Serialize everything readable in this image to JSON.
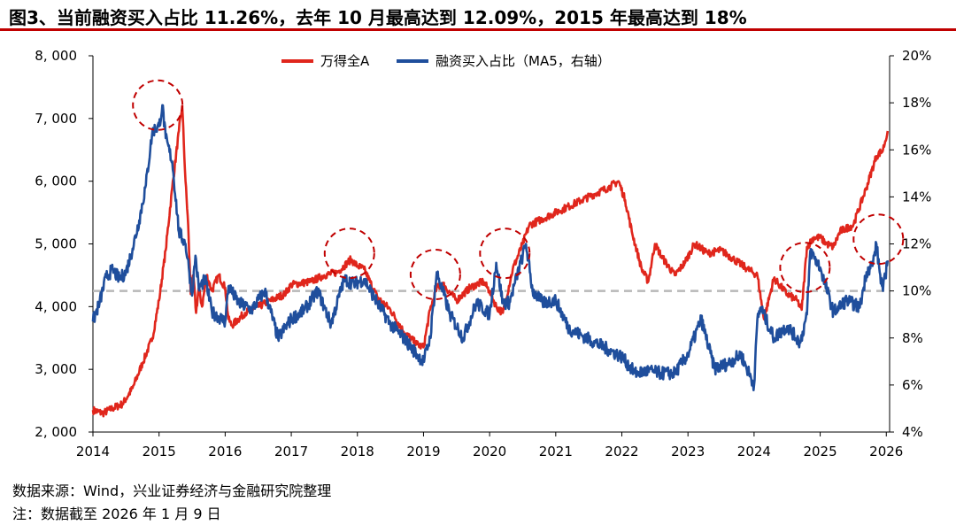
{
  "header": {
    "title": "图3、当前融资买入占比 11.26%，去年 10 月最高达到 12.09%，2015 年最高达到 18%"
  },
  "footer": {
    "source": "数据来源：Wind，兴业证券经济与金融研究院整理",
    "note": "注：数据截至 2026 年 1 月 9 日"
  },
  "colors": {
    "series_a": "#e0261c",
    "series_b": "#1f4e9c",
    "reference_line": "#b8b8b8",
    "circles": "#c00000",
    "title_rule": "#c00000"
  },
  "chart_data": {
    "type": "line",
    "title": "当前融资买入占比 11.26%，去年 10 月最高达到 12.09%，2015 年最高达到 18%",
    "x_tick_labels": [
      "2014",
      "2015",
      "2016",
      "2017",
      "2018",
      "2019",
      "2020",
      "2021",
      "2022",
      "2023",
      "2024",
      "2025",
      "2026"
    ],
    "x_range": [
      2014.0,
      2026.05
    ],
    "y_left": {
      "label": "万得全A",
      "range": [
        2000,
        8000
      ],
      "ticks": [
        "2, 000",
        "3, 000",
        "4, 000",
        "5, 000",
        "6, 000",
        "7, 000",
        "8, 000"
      ]
    },
    "y_right": {
      "label": "融资买入占比（MA5）",
      "unit": "%",
      "range": [
        4,
        20
      ],
      "ticks": [
        "4%",
        "6%",
        "8%",
        "10%",
        "12%",
        "14%",
        "16%",
        "18%",
        "20%"
      ]
    },
    "legend": {
      "position": "top-center"
    },
    "reference_line": {
      "axis": "right",
      "value": 10.0,
      "style": "dashed"
    },
    "series": [
      {
        "name": "万得全A",
        "axis": "left",
        "x": [
          2014.0,
          2014.15,
          2014.3,
          2014.45,
          2014.6,
          2014.75,
          2014.9,
          2015.0,
          2015.1,
          2015.2,
          2015.3,
          2015.35,
          2015.4,
          2015.44,
          2015.48,
          2015.52,
          2015.56,
          2015.6,
          2015.65,
          2015.72,
          2015.8,
          2015.9,
          2016.0,
          2016.05,
          2016.1,
          2016.3,
          2016.6,
          2016.9,
          2017.0,
          2017.3,
          2017.5,
          2017.7,
          2017.9,
          2018.0,
          2018.1,
          2018.3,
          2018.5,
          2018.7,
          2018.9,
          2019.0,
          2019.1,
          2019.2,
          2019.3,
          2019.5,
          2019.7,
          2019.9,
          2020.0,
          2020.1,
          2020.2,
          2020.35,
          2020.5,
          2020.6,
          2020.8,
          2021.0,
          2021.2,
          2021.4,
          2021.6,
          2021.8,
          2021.95,
          2022.05,
          2022.15,
          2022.3,
          2022.4,
          2022.5,
          2022.6,
          2022.8,
          2022.95,
          2023.1,
          2023.3,
          2023.5,
          2023.7,
          2023.9,
          2024.05,
          2024.15,
          2024.3,
          2024.5,
          2024.65,
          2024.72,
          2024.8,
          2024.9,
          2025.0,
          2025.1,
          2025.2,
          2025.3,
          2025.5,
          2025.7,
          2025.85,
          2025.95,
          2026.02
        ],
        "values": [
          2350,
          2300,
          2380,
          2450,
          2700,
          3100,
          3500,
          4100,
          4900,
          5900,
          6800,
          7200,
          6000,
          5300,
          4200,
          4500,
          3900,
          4300,
          4000,
          4500,
          4250,
          4500,
          4300,
          3800,
          3700,
          3900,
          4050,
          4200,
          4350,
          4400,
          4500,
          4550,
          4750,
          4650,
          4600,
          4150,
          3950,
          3600,
          3400,
          3350,
          3950,
          4300,
          4350,
          4100,
          4300,
          4400,
          4250,
          4000,
          3900,
          4600,
          5000,
          5300,
          5400,
          5500,
          5600,
          5700,
          5800,
          5900,
          6000,
          5700,
          5200,
          4600,
          4400,
          5000,
          4800,
          4500,
          4700,
          5000,
          4850,
          4900,
          4750,
          4600,
          4500,
          3800,
          4450,
          4200,
          4100,
          3950,
          4950,
          5100,
          5100,
          5000,
          4950,
          5200,
          5300,
          5900,
          6400,
          6500,
          6800
        ]
      },
      {
        "name": "融资买入占比（MA5，右轴）",
        "axis": "right",
        "x": [
          2014.0,
          2014.1,
          2014.2,
          2014.3,
          2014.4,
          2014.5,
          2014.6,
          2014.7,
          2014.8,
          2014.9,
          2015.0,
          2015.05,
          2015.1,
          2015.2,
          2015.3,
          2015.4,
          2015.45,
          2015.5,
          2015.55,
          2015.6,
          2015.7,
          2015.8,
          2016.0,
          2016.05,
          2016.2,
          2016.4,
          2016.6,
          2016.8,
          2017.0,
          2017.2,
          2017.4,
          2017.6,
          2017.8,
          2017.95,
          2018.1,
          2018.3,
          2018.5,
          2018.7,
          2018.9,
          2019.0,
          2019.1,
          2019.2,
          2019.4,
          2019.6,
          2019.8,
          2020.0,
          2020.1,
          2020.2,
          2020.3,
          2020.5,
          2020.55,
          2020.65,
          2020.8,
          2021.0,
          2021.2,
          2021.4,
          2021.6,
          2021.8,
          2022.0,
          2022.2,
          2022.4,
          2022.6,
          2022.8,
          2023.0,
          2023.2,
          2023.4,
          2023.6,
          2023.8,
          2024.0,
          2024.05,
          2024.1,
          2024.3,
          2024.5,
          2024.7,
          2024.8,
          2024.85,
          2025.0,
          2025.2,
          2025.4,
          2025.6,
          2025.7,
          2025.8,
          2025.85,
          2025.9,
          2025.95,
          2026.02
        ],
        "values": [
          8.7,
          9.5,
          10.6,
          10.9,
          10.5,
          10.8,
          11.8,
          13.0,
          14.5,
          16.8,
          17.0,
          17.9,
          16.5,
          15.5,
          12.5,
          12.0,
          11.0,
          9.8,
          11.5,
          10.1,
          10.5,
          9.1,
          8.7,
          10.2,
          9.5,
          9.2,
          10.0,
          8.0,
          8.8,
          9.2,
          10.0,
          8.6,
          10.5,
          10.3,
          10.5,
          9.5,
          8.6,
          8.0,
          7.3,
          7.0,
          8.0,
          10.8,
          9.0,
          8.0,
          9.5,
          9.0,
          11.2,
          9.5,
          9.5,
          11.5,
          12.0,
          10.0,
          9.5,
          9.6,
          8.4,
          8.1,
          7.8,
          7.5,
          7.2,
          6.5,
          6.6,
          6.5,
          6.5,
          7.3,
          8.8,
          6.7,
          6.9,
          7.3,
          6.0,
          8.8,
          9.3,
          8.0,
          8.5,
          7.8,
          9.0,
          11.7,
          11.0,
          9.1,
          9.6,
          9.3,
          10.8,
          11.2,
          12.0,
          10.8,
          10.0,
          11.3
        ]
      }
    ],
    "highlights": [
      {
        "x": 2014.98,
        "y": 17.9,
        "axis": "right"
      },
      {
        "x": 2017.88,
        "y": 11.6,
        "axis": "right"
      },
      {
        "x": 2019.18,
        "y": 10.7,
        "axis": "right"
      },
      {
        "x": 2020.23,
        "y": 11.6,
        "axis": "right"
      },
      {
        "x": 2024.77,
        "y": 11.0,
        "axis": "right"
      },
      {
        "x": 2025.88,
        "y": 12.2,
        "axis": "right"
      }
    ]
  }
}
